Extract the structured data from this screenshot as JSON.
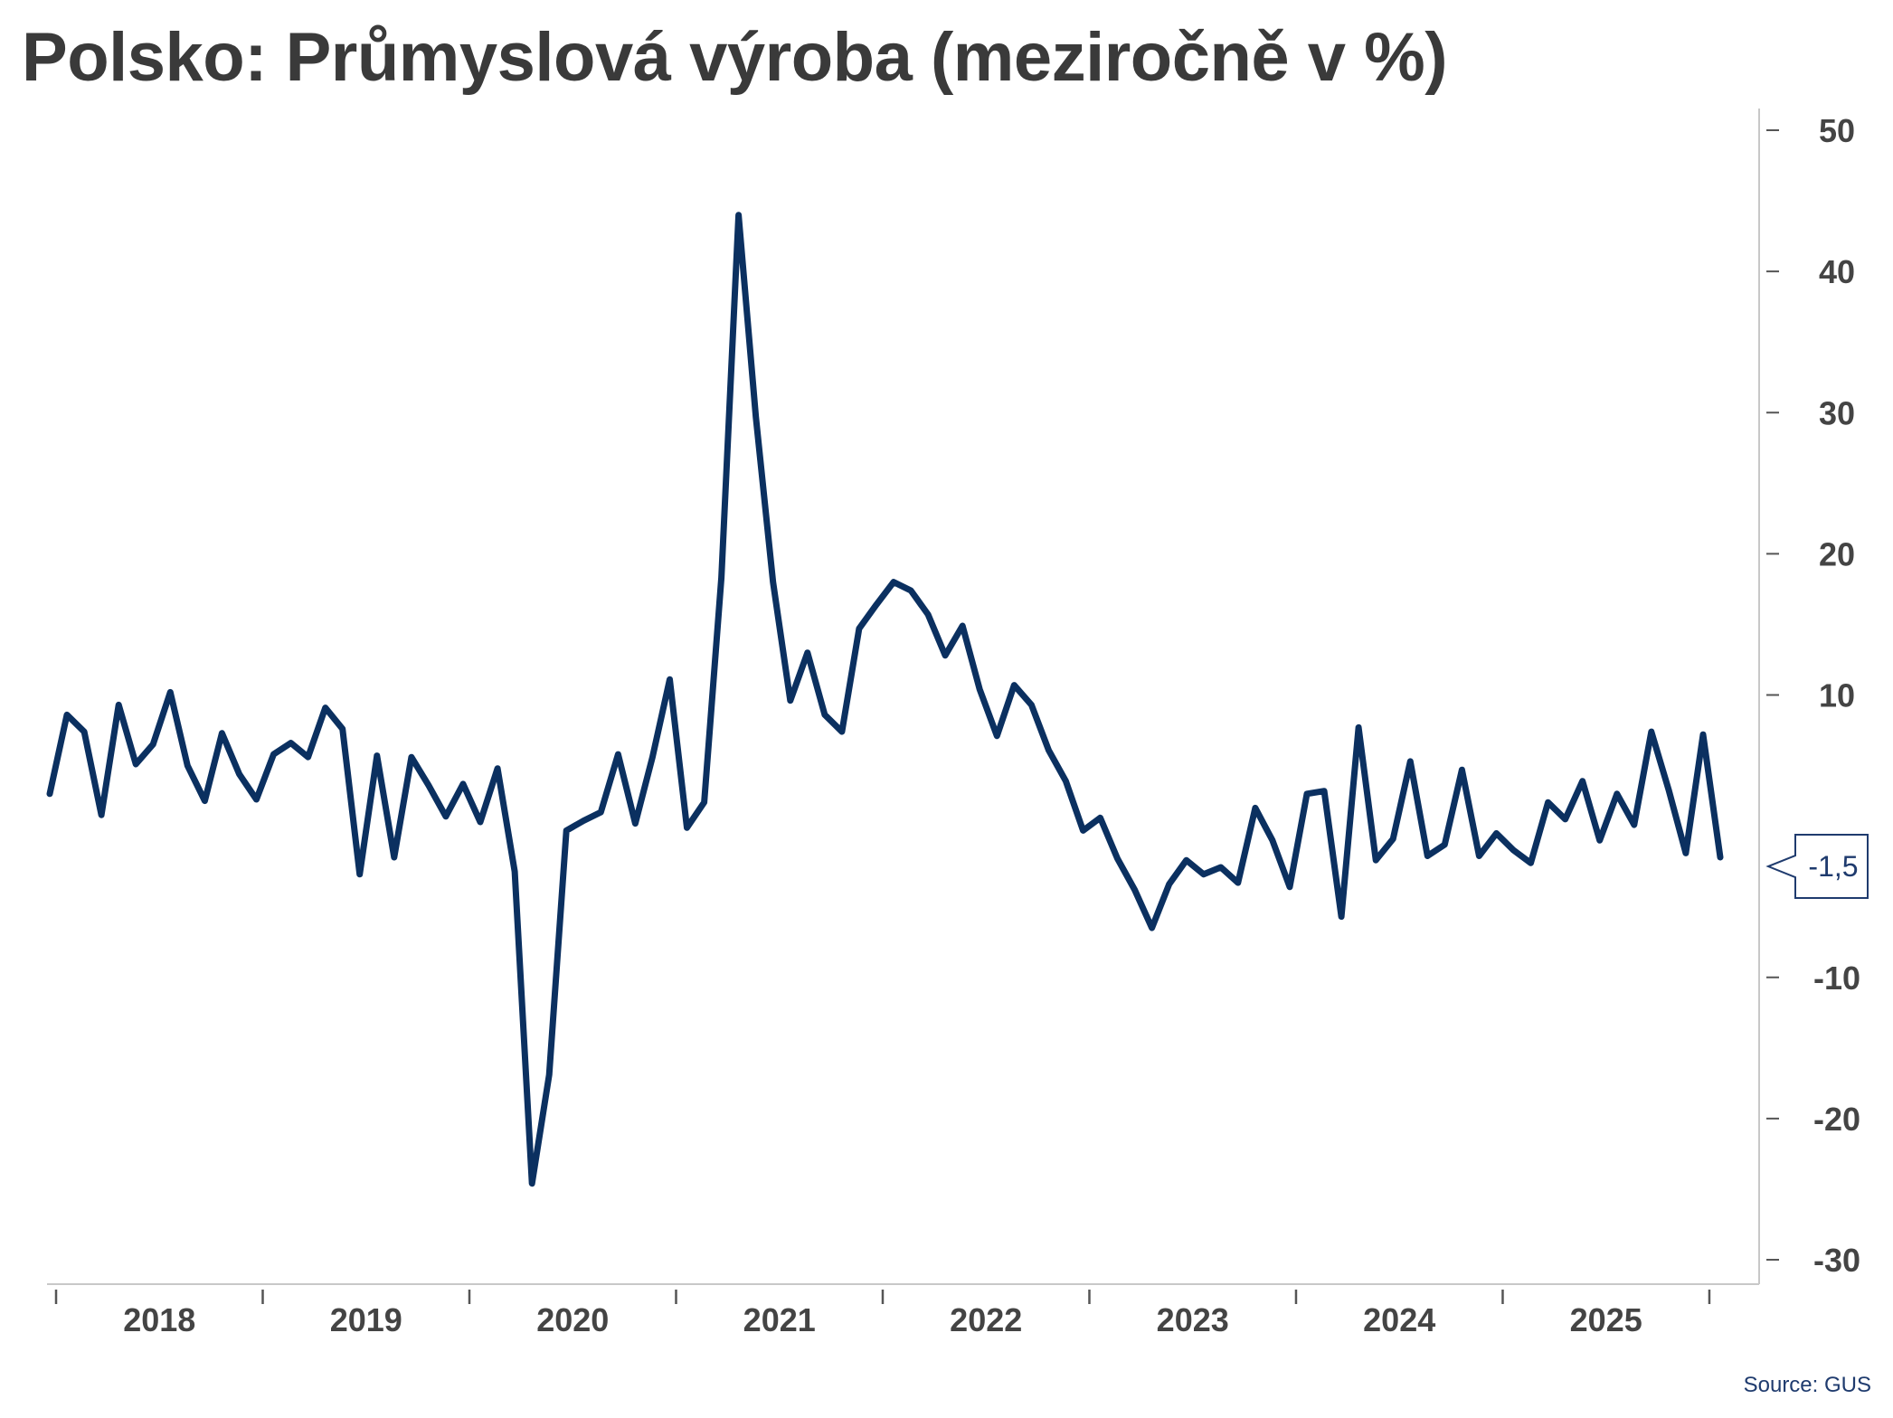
{
  "title": "Polsko: Průmyslová výroba (meziročně v %)",
  "source": "Source: GUS",
  "colors": {
    "line": "#0b3060",
    "axis": "#c8c8c8",
    "text": "#3a3a3a",
    "callout": "#1f3b6e"
  },
  "chart_data": {
    "type": "line",
    "title": "Polsko: Průmyslová výroba (meziročně v %)",
    "xlabel": "",
    "ylabel": "",
    "y_axis_position": "right",
    "ylim": [
      -30,
      50
    ],
    "y_ticks": [
      50,
      40,
      30,
      20,
      10,
      -10,
      -20,
      -30
    ],
    "x_ticks": [
      "2018",
      "2019",
      "2020",
      "2021",
      "2022",
      "2023",
      "2024",
      "2025"
    ],
    "grid": false,
    "last_value_label": "-1,5",
    "series": [
      {
        "values": [
          3.0,
          8.6,
          7.4,
          1.5,
          9.3,
          5.1,
          6.5,
          10.2,
          5.0,
          2.5,
          7.3,
          4.4,
          2.6,
          5.8,
          6.6,
          5.6,
          9.1,
          7.6,
          -2.7,
          5.7,
          -1.5,
          5.6,
          3.6,
          1.4,
          3.7,
          1.0,
          4.8,
          -2.5,
          -24.6,
          -16.9,
          0.4,
          1.1,
          1.7,
          5.8,
          0.9,
          5.6,
          11.1,
          0.6,
          2.4,
          18.3,
          44.0,
          29.7,
          18.0,
          9.6,
          13.0,
          8.6,
          7.4,
          14.7,
          16.4,
          18.0,
          17.4,
          15.7,
          12.8,
          14.9,
          10.4,
          7.1,
          10.7,
          9.3,
          6.1,
          3.9,
          0.4,
          1.3,
          -1.6,
          -3.8,
          -6.5,
          -3.4,
          -1.7,
          -2.7,
          -2.2,
          -3.3,
          2.0,
          -0.3,
          -3.6,
          3.0,
          3.2,
          -5.7,
          7.7,
          -1.7,
          -0.2,
          5.3,
          -1.4,
          -0.6,
          4.7,
          -1.4,
          0.2,
          -1.0,
          -1.9,
          2.4,
          1.2,
          3.9,
          -0.3,
          3.0,
          0.8,
          7.4,
          3.3,
          -1.2,
          7.2,
          -1.5
        ]
      }
    ]
  }
}
